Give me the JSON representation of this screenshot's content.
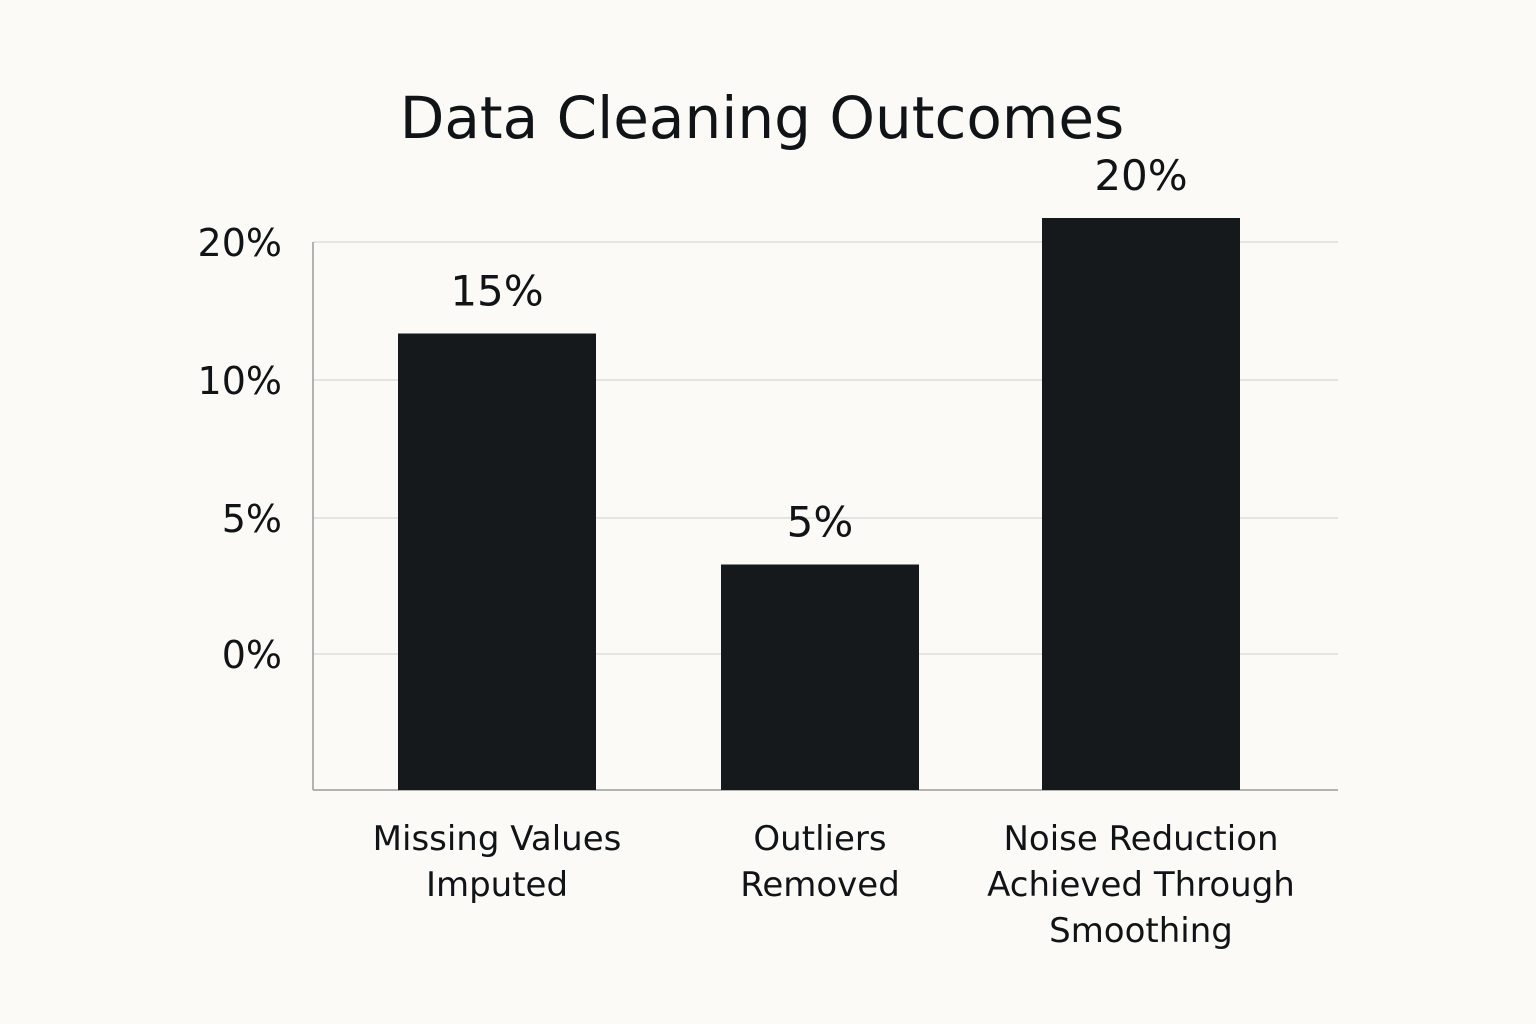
{
  "chart_data": {
    "type": "bar",
    "title": "Data Cleaning Outcomes",
    "xlabel": "",
    "ylabel": "",
    "categories": [
      "Missing Values Imputed",
      "Outliers Removed",
      "Noise Reduction Achieved Through Smoothing"
    ],
    "category_label_lines": [
      [
        "Missing Values",
        "Imputed"
      ],
      [
        "Outliers",
        "Removed"
      ],
      [
        "Noise Reduction",
        "Achieved Through",
        "Smoothing"
      ]
    ],
    "values": [
      15,
      5,
      20
    ],
    "value_labels": [
      "15%",
      "5%",
      "20%"
    ],
    "y_tick_labels": [
      "0%",
      "5%",
      "10%",
      "20%"
    ],
    "grid": true,
    "legend": "none",
    "bar_color": "#16191b",
    "grid_color": "#dcdcdc",
    "axis_color": "#9a9a9a",
    "background_color": "#fbfaf7"
  }
}
